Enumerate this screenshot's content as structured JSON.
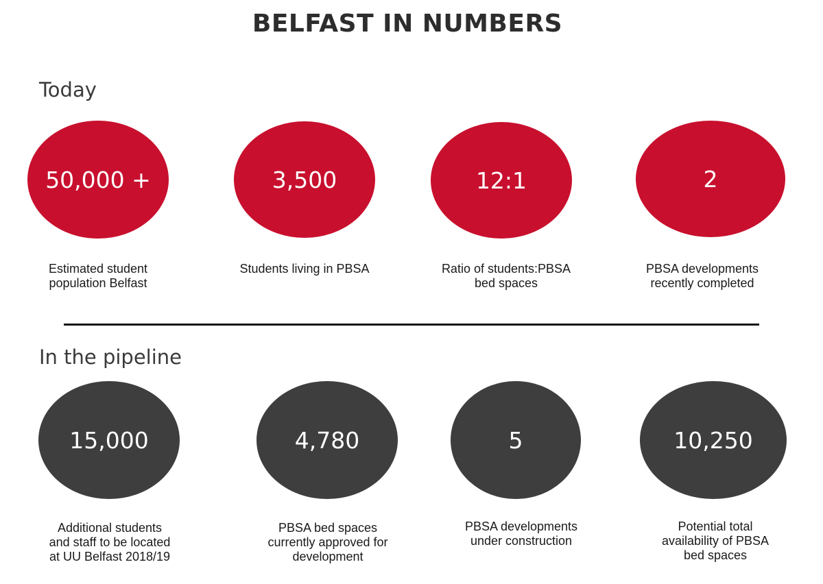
{
  "title": "BELFAST IN NUMBERS",
  "sections": {
    "today": {
      "heading": "Today",
      "stats": [
        {
          "value": "50,000 +",
          "caption": "Estimated student\npopulation Belfast"
        },
        {
          "value": "3,500",
          "caption": "Students living in PBSA"
        },
        {
          "value": "12:1",
          "caption": "Ratio of students:PBSA\nbed spaces"
        },
        {
          "value": "2",
          "caption": "PBSA developments\nrecently completed"
        }
      ]
    },
    "pipeline": {
      "heading": "In the pipeline",
      "stats": [
        {
          "value": "15,000",
          "caption": "Additional students\nand staff to be located\nat UU Belfast 2018/19"
        },
        {
          "value": "4,780",
          "caption": "PBSA bed spaces\ncurrently approved for\ndevelopment"
        },
        {
          "value": "5",
          "caption": "PBSA developments\nunder construction"
        },
        {
          "value": "10,250",
          "caption": "Potential total\navailability of PBSA\nbed spaces"
        }
      ]
    }
  },
  "colors": {
    "today_circle": "#c8102e",
    "pipeline_circle": "#3e3e3e"
  }
}
